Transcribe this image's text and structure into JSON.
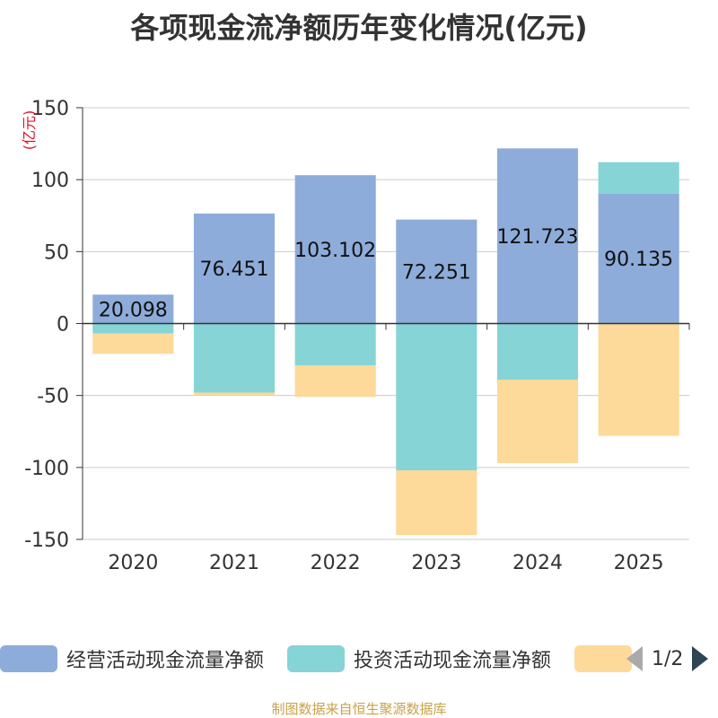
{
  "chart_data": {
    "type": "bar",
    "stacked": true,
    "title": "各项现金流净额历年变化情况(亿元)",
    "ylabel": "(亿元)",
    "xlabel": "",
    "ylim": [
      -150,
      150
    ],
    "yticks": [
      150,
      100,
      50,
      0,
      -50,
      -100,
      -150
    ],
    "categories": [
      "2020",
      "2021",
      "2022",
      "2023",
      "2024",
      "2025"
    ],
    "series": [
      {
        "name": "经营活动现金流量净额",
        "color": "#8eacd9",
        "values": [
          20.098,
          76.451,
          103.102,
          72.251,
          121.723,
          90.135
        ],
        "show_labels": true
      },
      {
        "name": "投资活动现金流量净额",
        "color": "#86d4d6",
        "values": [
          -7,
          -48,
          -29,
          -102,
          -39,
          22
        ],
        "show_labels": false
      },
      {
        "name": "",
        "color": "#fdd99a",
        "values": [
          -14,
          -2,
          -22,
          -45,
          -58,
          -78
        ],
        "show_labels": false
      }
    ],
    "legend_position": "bottom"
  },
  "legend_pager": {
    "text": "1/2"
  },
  "source": "制图数据来自恒生聚源数据库"
}
